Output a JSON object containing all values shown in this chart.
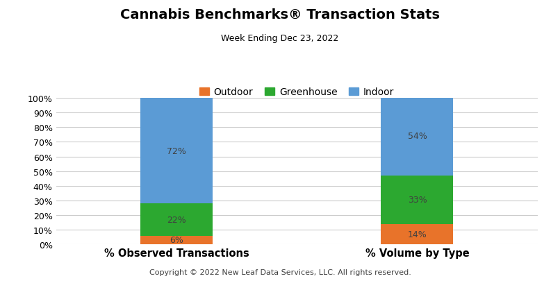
{
  "title": "Cannabis Benchmarks® Transaction Stats",
  "subtitle": "Week Ending Dec 23, 2022",
  "copyright": "Copyright © 2022 New Leaf Data Services, LLC. All rights reserved.",
  "categories": [
    "% Observed Transactions",
    "% Volume by Type"
  ],
  "series": [
    {
      "label": "Outdoor",
      "color": "#E8732A",
      "values": [
        6,
        14
      ]
    },
    {
      "label": "Greenhouse",
      "color": "#2CA830",
      "values": [
        22,
        33
      ]
    },
    {
      "label": "Indoor",
      "color": "#5B9BD5",
      "values": [
        72,
        54
      ]
    }
  ],
  "bar_labels": [
    [
      "6%",
      "22%",
      "72%"
    ],
    [
      "14%",
      "33%",
      "54%"
    ]
  ],
  "ylim": [
    0,
    100
  ],
  "yticks": [
    0,
    10,
    20,
    30,
    40,
    50,
    60,
    70,
    80,
    90,
    100
  ],
  "ytick_labels": [
    "0%",
    "10%",
    "20%",
    "30%",
    "40%",
    "50%",
    "60%",
    "70%",
    "80%",
    "90%",
    "100%"
  ],
  "background_color": "#FFFFFF",
  "grid_color": "#CCCCCC",
  "title_fontsize": 14,
  "subtitle_fontsize": 9,
  "label_fontsize": 9,
  "legend_fontsize": 10,
  "copyright_fontsize": 8,
  "bar_width": 0.15,
  "bar_positions": [
    0.25,
    0.75
  ],
  "xlim": [
    0,
    1
  ]
}
